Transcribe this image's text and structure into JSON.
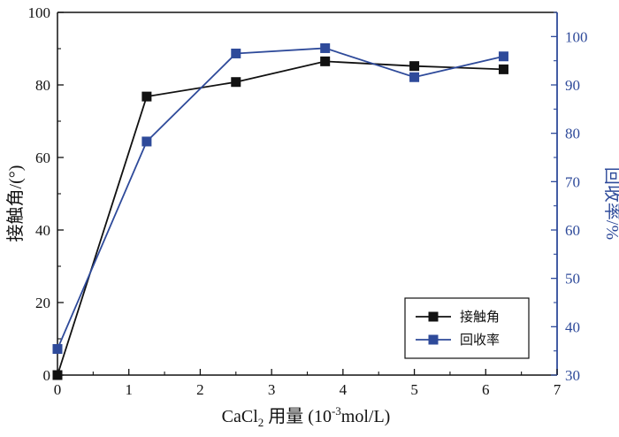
{
  "chart_data": {
    "type": "line",
    "x": [
      0,
      1.25,
      2.5,
      3.75,
      5,
      6.25
    ],
    "xlabel_main": "CaCl",
    "xlabel_sub": "2",
    "xlabel_rest": " 用量 (10",
    "xlabel_sup": "-3",
    "xlabel_unit": "mol/L)",
    "ylabel_left": "接触角/(°)",
    "ylabel_right": "回收率/%",
    "xlim": [
      0,
      7
    ],
    "ylim_left": [
      0,
      100
    ],
    "ylim_right": [
      30,
      105
    ],
    "x_ticks": [
      0,
      1,
      2,
      3,
      4,
      5,
      6,
      7
    ],
    "y_left_ticks": [
      0,
      20,
      40,
      60,
      80,
      100
    ],
    "y_right_ticks": [
      30,
      40,
      50,
      60,
      70,
      80,
      90,
      100
    ],
    "legend_position": "lower-right",
    "series": [
      {
        "name": "接触角",
        "axis": "left",
        "color": "#111111",
        "values": [
          0,
          76.8,
          80.8,
          86.5,
          85.2,
          84.3
        ]
      },
      {
        "name": "回收率",
        "axis": "right",
        "color": "#2e4a9a",
        "values": [
          35.4,
          78.3,
          96.5,
          97.6,
          91.6,
          95.9
        ]
      }
    ],
    "left_axis_color": "#111111",
    "right_axis_color": "#2e4a9a"
  }
}
